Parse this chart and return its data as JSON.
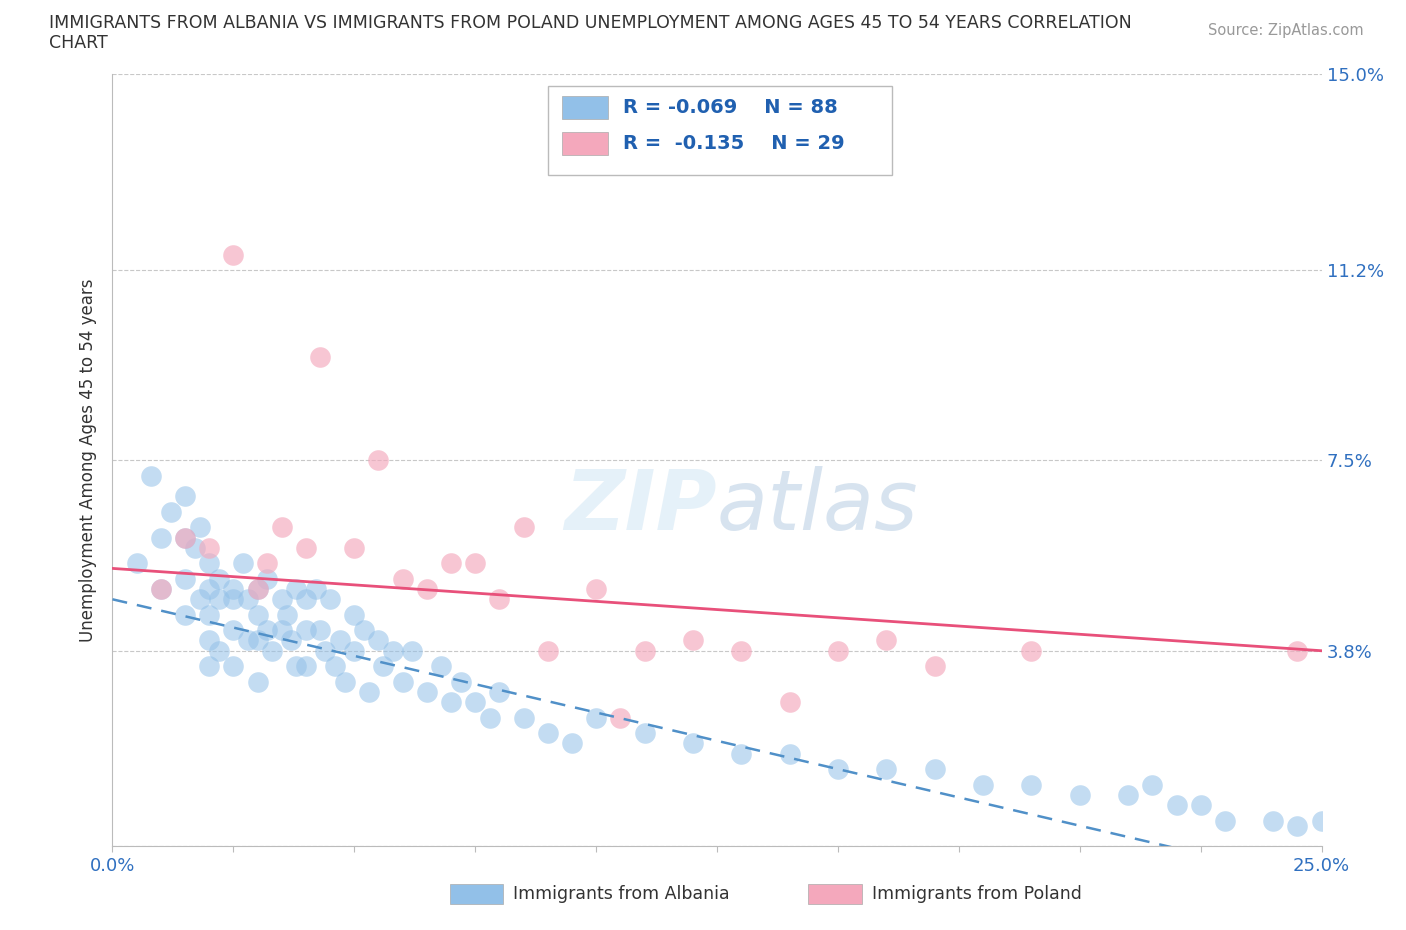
{
  "title_line1": "IMMIGRANTS FROM ALBANIA VS IMMIGRANTS FROM POLAND UNEMPLOYMENT AMONG AGES 45 TO 54 YEARS CORRELATION",
  "title_line2": "CHART",
  "source": "Source: ZipAtlas.com",
  "ylabel": "Unemployment Among Ages 45 to 54 years",
  "xlim": [
    0.0,
    0.25
  ],
  "ylim": [
    0.0,
    0.15
  ],
  "xticks": [
    0.0,
    0.025,
    0.05,
    0.075,
    0.1,
    0.125,
    0.15,
    0.175,
    0.2,
    0.225,
    0.25
  ],
  "yticks": [
    0.0,
    0.038,
    0.075,
    0.112,
    0.15
  ],
  "yticklabels_right": [
    "",
    "3.8%",
    "7.5%",
    "11.2%",
    "15.0%"
  ],
  "albania_color": "#92c0e8",
  "poland_color": "#f4a8bc",
  "albania_R": -0.069,
  "albania_N": 88,
  "poland_R": -0.135,
  "poland_N": 29,
  "albania_line_color": "#5090c8",
  "poland_line_color": "#e8507a",
  "watermark": "ZIPatlas",
  "legend_label_albania": "Immigrants from Albania",
  "legend_label_poland": "Immigrants from Poland",
  "albania_x": [
    0.005,
    0.008,
    0.01,
    0.01,
    0.012,
    0.015,
    0.015,
    0.015,
    0.015,
    0.017,
    0.018,
    0.018,
    0.02,
    0.02,
    0.02,
    0.02,
    0.02,
    0.022,
    0.022,
    0.022,
    0.025,
    0.025,
    0.025,
    0.025,
    0.027,
    0.028,
    0.028,
    0.03,
    0.03,
    0.03,
    0.03,
    0.032,
    0.032,
    0.033,
    0.035,
    0.035,
    0.036,
    0.037,
    0.038,
    0.038,
    0.04,
    0.04,
    0.04,
    0.042,
    0.043,
    0.044,
    0.045,
    0.046,
    0.047,
    0.048,
    0.05,
    0.05,
    0.052,
    0.053,
    0.055,
    0.056,
    0.058,
    0.06,
    0.062,
    0.065,
    0.068,
    0.07,
    0.072,
    0.075,
    0.078,
    0.08,
    0.085,
    0.09,
    0.095,
    0.1,
    0.11,
    0.12,
    0.13,
    0.14,
    0.15,
    0.16,
    0.17,
    0.18,
    0.19,
    0.2,
    0.21,
    0.215,
    0.22,
    0.225,
    0.23,
    0.24,
    0.245,
    0.25
  ],
  "albania_y": [
    0.055,
    0.072,
    0.06,
    0.05,
    0.065,
    0.068,
    0.06,
    0.052,
    0.045,
    0.058,
    0.062,
    0.048,
    0.055,
    0.05,
    0.045,
    0.04,
    0.035,
    0.052,
    0.048,
    0.038,
    0.05,
    0.048,
    0.042,
    0.035,
    0.055,
    0.048,
    0.04,
    0.05,
    0.045,
    0.04,
    0.032,
    0.052,
    0.042,
    0.038,
    0.048,
    0.042,
    0.045,
    0.04,
    0.05,
    0.035,
    0.048,
    0.042,
    0.035,
    0.05,
    0.042,
    0.038,
    0.048,
    0.035,
    0.04,
    0.032,
    0.045,
    0.038,
    0.042,
    0.03,
    0.04,
    0.035,
    0.038,
    0.032,
    0.038,
    0.03,
    0.035,
    0.028,
    0.032,
    0.028,
    0.025,
    0.03,
    0.025,
    0.022,
    0.02,
    0.025,
    0.022,
    0.02,
    0.018,
    0.018,
    0.015,
    0.015,
    0.015,
    0.012,
    0.012,
    0.01,
    0.01,
    0.012,
    0.008,
    0.008,
    0.005,
    0.005,
    0.004,
    0.005
  ],
  "poland_x": [
    0.01,
    0.015,
    0.02,
    0.025,
    0.03,
    0.032,
    0.035,
    0.04,
    0.043,
    0.05,
    0.055,
    0.06,
    0.065,
    0.07,
    0.075,
    0.08,
    0.085,
    0.09,
    0.1,
    0.105,
    0.11,
    0.12,
    0.13,
    0.14,
    0.15,
    0.16,
    0.17,
    0.19,
    0.245
  ],
  "poland_y": [
    0.05,
    0.06,
    0.058,
    0.115,
    0.05,
    0.055,
    0.062,
    0.058,
    0.095,
    0.058,
    0.075,
    0.052,
    0.05,
    0.055,
    0.055,
    0.048,
    0.062,
    0.038,
    0.05,
    0.025,
    0.038,
    0.04,
    0.038,
    0.028,
    0.038,
    0.04,
    0.035,
    0.038,
    0.038
  ]
}
